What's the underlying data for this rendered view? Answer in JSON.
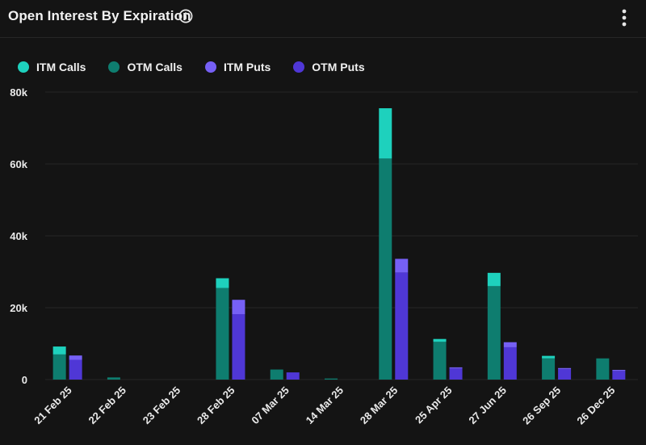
{
  "header": {
    "title": "Open Interest By Expiration"
  },
  "icons": {
    "info": "info-icon",
    "menu": "more-vertical-icon"
  },
  "colors": {
    "itm_calls": "#1ed1bd",
    "otm_calls": "#0e7d6f",
    "itm_puts": "#7660f5",
    "otm_puts": "#4f37d6",
    "background": "#141414",
    "grid": "#262626"
  },
  "chart_data": {
    "type": "bar",
    "stacked": true,
    "title": "Open Interest By Expiration",
    "xlabel": "",
    "ylabel": "",
    "ylim": [
      0,
      80000
    ],
    "yticks": [
      0,
      20000,
      40000,
      60000,
      80000
    ],
    "ytick_labels": [
      "0",
      "20k",
      "40k",
      "60k",
      "80k"
    ],
    "categories": [
      "21 Feb 25",
      "22 Feb 25",
      "23 Feb 25",
      "28 Feb 25",
      "07 Mar 25",
      "14 Mar 25",
      "28 Mar 25",
      "25 Apr 25",
      "27 Jun 25",
      "26 Sep 25",
      "26 Dec 25"
    ],
    "legend_position": "top-left",
    "series": [
      {
        "name": "ITM Calls",
        "group": "calls",
        "stack_order": 2,
        "color": "#1ed1bd",
        "values": [
          2200,
          0,
          0,
          2700,
          0,
          0,
          14000,
          800,
          3700,
          700,
          0
        ]
      },
      {
        "name": "OTM Calls",
        "group": "calls",
        "stack_order": 1,
        "color": "#0e7d6f",
        "values": [
          7000,
          600,
          0,
          25500,
          2800,
          300,
          61500,
          10500,
          26000,
          5900,
          5900
        ]
      },
      {
        "name": "ITM Puts",
        "group": "puts",
        "stack_order": 2,
        "color": "#7660f5",
        "values": [
          1200,
          0,
          0,
          4000,
          0,
          0,
          3800,
          300,
          1400,
          300,
          300
        ]
      },
      {
        "name": "OTM Puts",
        "group": "puts",
        "stack_order": 1,
        "color": "#4f37d6",
        "values": [
          5500,
          0,
          0,
          18200,
          2000,
          0,
          29800,
          3100,
          9000,
          2900,
          2400
        ]
      }
    ]
  }
}
